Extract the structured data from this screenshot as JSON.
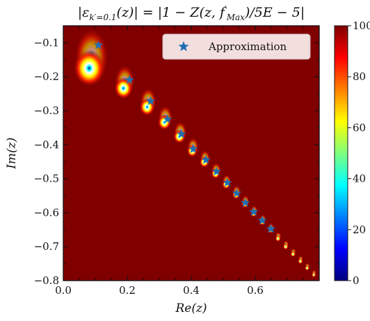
{
  "chart_data": {
    "type": "heatmap",
    "title": "|ε_{k'=0.1}(z)| = |1 − Z(z, f'_{Max})/5E − 5|",
    "title_parts": {
      "lhs": "|ε",
      "sub": "k′=0.1",
      "mid": "(z)| = |1 − Z(z, f",
      "sup": "′",
      "sub2": "Max",
      "rhs": ")/5E − 5|"
    },
    "xlabel": "Re(z)",
    "ylabel": "Im(z)",
    "xlim": [
      0.0,
      0.8
    ],
    "ylim": [
      -0.8,
      -0.05
    ],
    "xticks": [
      0.0,
      0.2,
      0.4,
      0.6
    ],
    "xtick_labels": [
      "0.0",
      "0.2",
      "0.4",
      "0.6"
    ],
    "yticks": [
      -0.1,
      -0.2,
      -0.3,
      -0.4,
      -0.5,
      -0.6,
      -0.7,
      -0.8
    ],
    "ytick_labels": [
      "−0.1",
      "−0.2",
      "−0.3",
      "−0.4",
      "−0.5",
      "−0.6",
      "−0.7",
      "−0.8"
    ],
    "colorbar": {
      "range": [
        0,
        100
      ],
      "ticks": [
        0,
        20,
        40,
        60,
        80,
        100
      ],
      "tick_labels": [
        "0",
        "20",
        "40",
        "60",
        "80",
        "100"
      ],
      "colormap": "jet"
    },
    "background_value": 100,
    "legend": {
      "label": "Approximation",
      "placement": "top-right",
      "marker": "star"
    },
    "approximation_points": [
      {
        "x": 0.11,
        "y": -0.107
      },
      {
        "x": 0.207,
        "y": -0.209
      },
      {
        "x": 0.273,
        "y": -0.272
      },
      {
        "x": 0.326,
        "y": -0.325
      },
      {
        "x": 0.369,
        "y": -0.369
      },
      {
        "x": 0.406,
        "y": -0.413
      },
      {
        "x": 0.446,
        "y": -0.445
      },
      {
        "x": 0.479,
        "y": -0.479
      },
      {
        "x": 0.513,
        "y": -0.512
      },
      {
        "x": 0.542,
        "y": -0.543
      },
      {
        "x": 0.569,
        "y": -0.571
      },
      {
        "x": 0.595,
        "y": -0.598
      },
      {
        "x": 0.622,
        "y": -0.623
      },
      {
        "x": 0.649,
        "y": -0.648
      }
    ],
    "minima": [
      {
        "x": 0.081,
        "y": -0.175,
        "scale": 2.4
      },
      {
        "x": 0.188,
        "y": -0.234,
        "scale": 1.4
      },
      {
        "x": 0.262,
        "y": -0.289,
        "scale": 1.15
      },
      {
        "x": 0.316,
        "y": -0.334,
        "scale": 1.0
      },
      {
        "x": 0.363,
        "y": -0.376,
        "scale": 0.9
      },
      {
        "x": 0.403,
        "y": -0.418,
        "scale": 0.8
      },
      {
        "x": 0.441,
        "y": -0.451,
        "scale": 0.72
      },
      {
        "x": 0.476,
        "y": -0.485,
        "scale": 0.66
      },
      {
        "x": 0.509,
        "y": -0.517,
        "scale": 0.6
      },
      {
        "x": 0.54,
        "y": -0.547,
        "scale": 0.56
      },
      {
        "x": 0.568,
        "y": -0.574,
        "scale": 0.52
      },
      {
        "x": 0.595,
        "y": -0.602,
        "scale": 0.48
      },
      {
        "x": 0.622,
        "y": -0.627,
        "scale": 0.45
      },
      {
        "x": 0.648,
        "y": -0.651,
        "scale": 0.42
      },
      {
        "x": 0.671,
        "y": -0.676,
        "scale": 0.4
      },
      {
        "x": 0.695,
        "y": -0.7,
        "scale": 0.38
      },
      {
        "x": 0.718,
        "y": -0.722,
        "scale": 0.36
      },
      {
        "x": 0.741,
        "y": -0.743,
        "scale": 0.34
      },
      {
        "x": 0.762,
        "y": -0.763,
        "scale": 0.32
      },
      {
        "x": 0.783,
        "y": -0.783,
        "scale": 0.3
      }
    ],
    "colors": {
      "background": "#800000",
      "marker": "#1f6fb4",
      "legend_bg": "#f3dede"
    }
  }
}
